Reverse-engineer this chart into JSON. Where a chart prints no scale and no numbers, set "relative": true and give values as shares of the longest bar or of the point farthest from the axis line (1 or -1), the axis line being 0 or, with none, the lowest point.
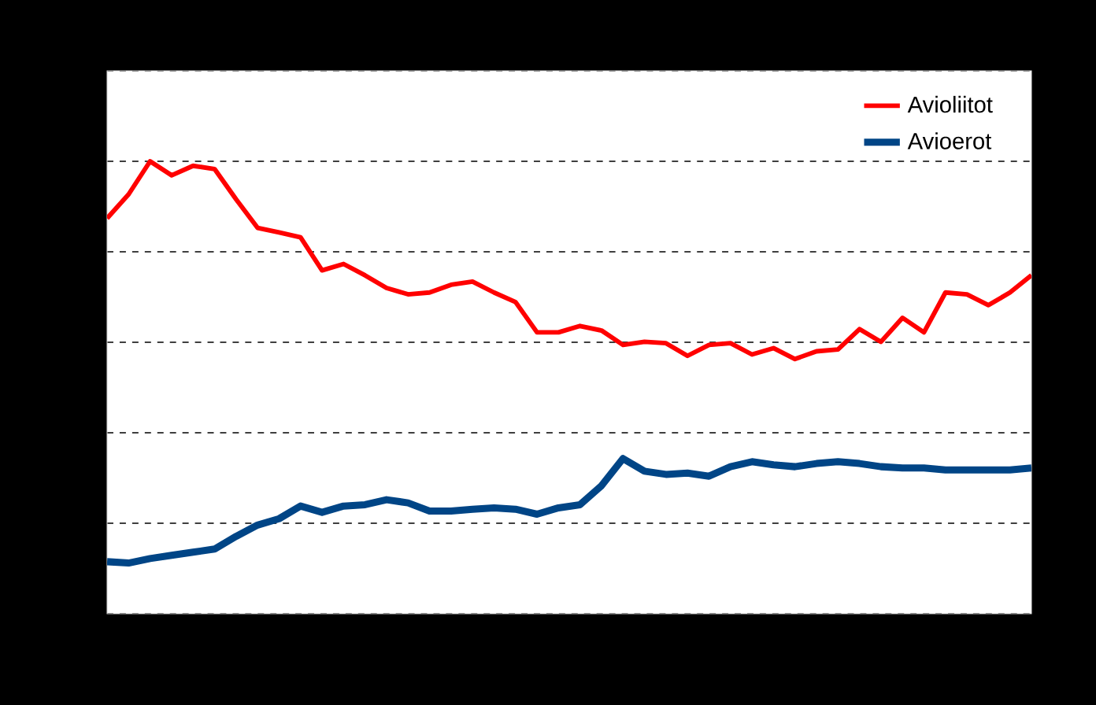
{
  "chart_data": {
    "type": "line",
    "relative": true,
    "grid": "y",
    "legend": "top right",
    "tick_labels": false,
    "marker": "none",
    "line_style": "solid",
    "categories": [
      null,
      null,
      null,
      null,
      null,
      null,
      null,
      null,
      null,
      null,
      null,
      null,
      null,
      null,
      null,
      null,
      null,
      null,
      null,
      null,
      null,
      null,
      null,
      null,
      null,
      null,
      null,
      null,
      null,
      null,
      null,
      null,
      null,
      null,
      null,
      null,
      null,
      null,
      null,
      null,
      null,
      null,
      null,
      null
    ],
    "series": [
      {
        "name": "Avioliitot",
        "color": "#ff0000",
        "values": [
          0.874,
          0.927,
          1,
          0.969,
          0.99,
          0.983,
          0.916,
          0.853,
          0.843,
          0.832,
          0.759,
          0.773,
          0.748,
          0.72,
          0.706,
          0.71,
          0.727,
          0.734,
          0.71,
          0.689,
          0.622,
          0.622,
          0.636,
          0.626,
          0.594,
          0.601,
          0.598,
          0.57,
          0.594,
          0.598,
          0.573,
          0.587,
          0.563,
          0.58,
          0.584,
          0.629,
          0.601,
          0.654,
          0.622,
          0.71,
          0.706,
          0.682,
          0.71,
          0.748
        ]
      },
      {
        "name": "Avioerot",
        "color": "#004586",
        "values": [
          0.115,
          0.112,
          0.122,
          0.129,
          0.136,
          0.143,
          0.171,
          0.196,
          0.21,
          0.238,
          0.224,
          0.238,
          0.241,
          0.252,
          0.245,
          0.227,
          0.227,
          0.231,
          0.234,
          0.231,
          0.22,
          0.234,
          0.241,
          0.283,
          0.343,
          0.315,
          0.308,
          0.311,
          0.304,
          0.325,
          0.336,
          0.329,
          0.325,
          0.332,
          0.336,
          0.332,
          0.325,
          0.322,
          0.322,
          0.318,
          0.318,
          0.318,
          0.318,
          0.322
        ]
      }
    ]
  }
}
